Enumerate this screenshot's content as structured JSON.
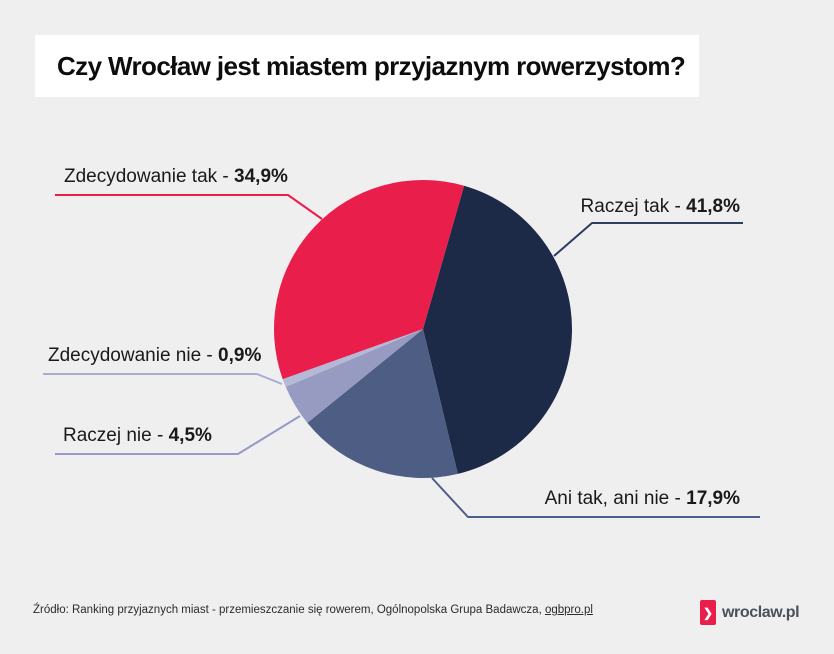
{
  "title": {
    "text": "Czy Wrocław jest miastem przyjaznym rowerzystom?"
  },
  "chart_data": {
    "type": "pie",
    "title": "Czy Wrocław jest miastem przyjaznym rowerzystom?",
    "unit": "%",
    "start_angle_deg": 16,
    "legend_position": "callout-labels",
    "slices": [
      {
        "label": "Raczej tak",
        "value": 41.8,
        "display": "41,8%",
        "color": "#1c2a47"
      },
      {
        "label": "Ani tak, ani nie",
        "value": 17.9,
        "display": "17,9%",
        "color": "#4d5d83"
      },
      {
        "label": "Raczej nie",
        "value": 4.5,
        "display": "4,5%",
        "color": "#979bc2"
      },
      {
        "label": "Zdecydowanie nie",
        "value": 0.9,
        "display": "0,9%",
        "color": "#b5b9d6"
      },
      {
        "label": "Zdecydowanie tak",
        "value": 34.9,
        "display": "34,9%",
        "color": "#e91e4a"
      }
    ]
  },
  "labels": {
    "zdecydowanie_tak": {
      "text": "Zdecydowanie tak - ",
      "value": "34,9%",
      "line_color": "#e91e4a"
    },
    "raczej_tak": {
      "text": "Raczej tak - ",
      "value": "41,8%",
      "line_color": "#2c3c63"
    },
    "zdecydowanie_nie": {
      "text": "Zdecydowanie nie - ",
      "value": "0,9%",
      "line_color": "#a9add2"
    },
    "raczej_nie": {
      "text": "Raczej nie - ",
      "value": "4,5%",
      "line_color": "#959ac8"
    },
    "ani_tak_ani_nie": {
      "text": "Ani tak, ani nie - ",
      "value": "17,9%",
      "line_color": "#4d5d8c"
    }
  },
  "footer": {
    "source_text": "Źródło: Ranking przyjaznych miast - przemieszczanie się rowerem, Ogólnopolska Grupa Badawcza, ",
    "source_link": "ogbpro.pl",
    "logo_text": "wroclaw.pl",
    "logo_color": "#e91e4a",
    "logo_text_color": "#4a505c"
  },
  "colors": {
    "page_background": "#efeff0",
    "title_bar_background": "#ffffff",
    "title_text": "#0d0d0d",
    "label_text": "#1a1a1a"
  }
}
